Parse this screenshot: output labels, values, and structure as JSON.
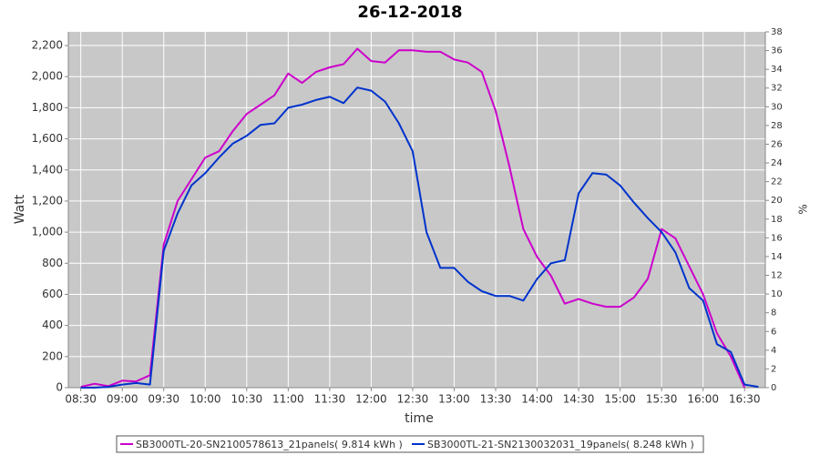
{
  "chart_data": {
    "type": "line",
    "title": "26-12-2018",
    "x_label": "time",
    "y_label": "Watt",
    "y2_label": "%",
    "x": [
      510,
      520,
      530,
      540,
      550,
      560,
      570,
      580,
      590,
      600,
      610,
      620,
      630,
      640,
      650,
      660,
      670,
      680,
      690,
      700,
      710,
      720,
      730,
      740,
      750,
      760,
      770,
      780,
      790,
      800,
      810,
      820,
      830,
      840,
      850,
      860,
      870,
      880,
      890,
      900,
      910,
      920,
      930,
      940,
      950,
      960,
      970,
      980,
      990,
      1000
    ],
    "series": [
      {
        "name": "SB3000TL-20-SN2100578613_21panels( 9.814 kWh )",
        "color": "#cc00cc",
        "values": [
          5,
          25,
          10,
          45,
          40,
          80,
          920,
          1200,
          1340,
          1480,
          1520,
          1650,
          1760,
          1820,
          1880,
          2020,
          1960,
          2030,
          2060,
          2080,
          2180,
          2100,
          2090,
          2170,
          2170,
          2160,
          2160,
          2110,
          2090,
          2030,
          1780,
          1420,
          1020,
          840,
          720,
          540,
          570,
          540,
          520,
          520,
          580,
          700,
          1020,
          960,
          780,
          600,
          350,
          200,
          0,
          null
        ]
      },
      {
        "name": "SB3000TL-21-SN2130032031_19panels( 8.248 kWh )",
        "color": "#0033cc",
        "values": [
          0,
          0,
          5,
          20,
          30,
          20,
          880,
          1120,
          1300,
          1380,
          1480,
          1570,
          1620,
          1690,
          1700,
          1800,
          1820,
          1850,
          1870,
          1830,
          1930,
          1910,
          1840,
          1700,
          1520,
          1000,
          770,
          770,
          680,
          620,
          590,
          590,
          560,
          700,
          800,
          820,
          1250,
          1380,
          1370,
          1300,
          1190,
          1090,
          1000,
          870,
          640,
          560,
          280,
          230,
          20,
          5
        ]
      }
    ],
    "xlim": [
      501,
      1005
    ],
    "xticks": [
      {
        "value": 510,
        "label": "08:30"
      },
      {
        "value": 540,
        "label": "09:00"
      },
      {
        "value": 570,
        "label": "09:30"
      },
      {
        "value": 600,
        "label": "10:00"
      },
      {
        "value": 630,
        "label": "10:30"
      },
      {
        "value": 660,
        "label": "11:00"
      },
      {
        "value": 690,
        "label": "11:30"
      },
      {
        "value": 720,
        "label": "12:00"
      },
      {
        "value": 750,
        "label": "12:30"
      },
      {
        "value": 780,
        "label": "13:00"
      },
      {
        "value": 810,
        "label": "13:30"
      },
      {
        "value": 840,
        "label": "14:00"
      },
      {
        "value": 870,
        "label": "14:30"
      },
      {
        "value": 900,
        "label": "15:00"
      },
      {
        "value": 930,
        "label": "15:30"
      },
      {
        "value": 960,
        "label": "16:00"
      },
      {
        "value": 990,
        "label": "16:30"
      }
    ],
    "ylim": [
      0,
      2288
    ],
    "yticks": [
      0,
      200,
      400,
      600,
      800,
      {
        "value": 1000,
        "label": "1,000"
      },
      {
        "value": 1200,
        "label": "1,200"
      },
      {
        "value": 1400,
        "label": "1,400"
      },
      {
        "value": 1600,
        "label": "1,600"
      },
      {
        "value": 1800,
        "label": "1,800"
      },
      {
        "value": 2000,
        "label": "2,000"
      },
      {
        "value": 2200,
        "label": "2,200"
      }
    ],
    "y2lim": [
      0,
      38
    ],
    "y2ticks": [
      0,
      2,
      4,
      6,
      8,
      10,
      12,
      14,
      16,
      18,
      20,
      22,
      24,
      26,
      28,
      30,
      32,
      34,
      36,
      38
    ],
    "grid": true,
    "legend": "bottom"
  }
}
